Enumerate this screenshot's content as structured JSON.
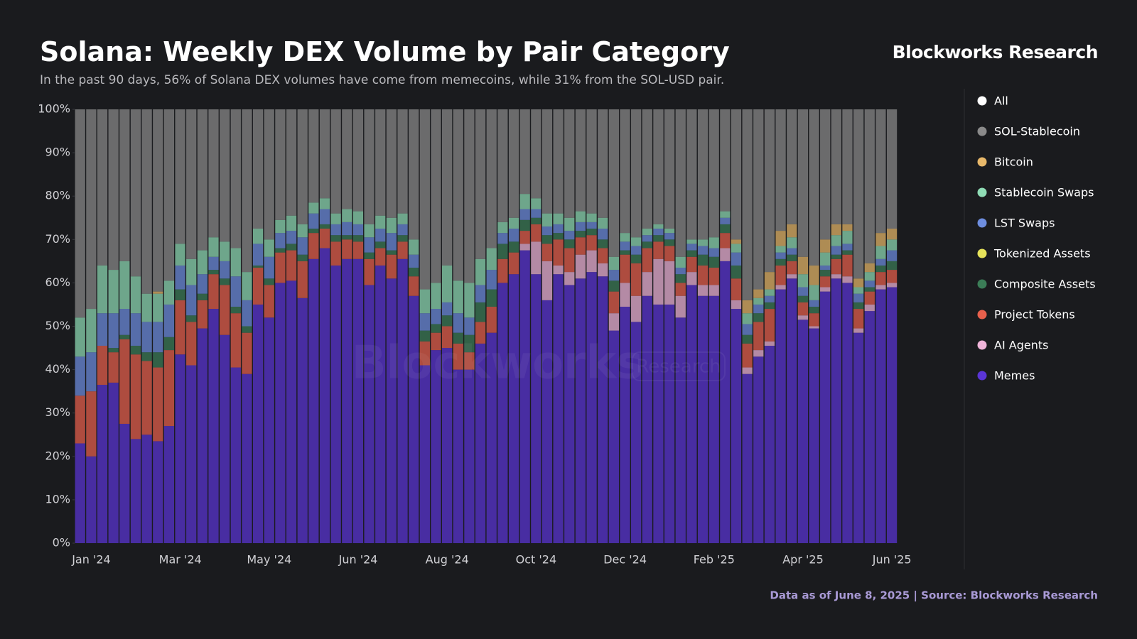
{
  "chart_data": {
    "type": "bar",
    "stacked": true,
    "title": "Solana: Weekly DEX Volume by Pair Category",
    "subtitle": "In the past 90 days, 56% of Solana DEX volumes have come from memecoins, while 31% from the SOL-USD pair.",
    "brand": "Blockworks Research",
    "footer": "Data as of June 8, 2025 | Source: Blockworks Research",
    "watermark": {
      "name": "Blockworks",
      "tag": "Research"
    },
    "legend_toggle": "All",
    "legend_position": "right",
    "grid": false,
    "ylim": [
      0,
      100
    ],
    "yticks": [
      {
        "value": 0,
        "label": "0%"
      },
      {
        "value": 10,
        "label": "10%"
      },
      {
        "value": 20,
        "label": "20%"
      },
      {
        "value": 30,
        "label": "30%"
      },
      {
        "value": 40,
        "label": "40%"
      },
      {
        "value": 50,
        "label": "50%"
      },
      {
        "value": 60,
        "label": "60%"
      },
      {
        "value": 70,
        "label": "70%"
      },
      {
        "value": 80,
        "label": "80%"
      },
      {
        "value": 90,
        "label": "90%"
      },
      {
        "value": 100,
        "label": "100%"
      }
    ],
    "categories": [
      null,
      "Jan '24",
      null,
      null,
      null,
      null,
      null,
      null,
      null,
      "Mar '24",
      null,
      null,
      null,
      null,
      null,
      null,
      null,
      "May '24",
      null,
      null,
      null,
      null,
      null,
      null,
      null,
      "Jun '24",
      null,
      null,
      null,
      null,
      null,
      null,
      null,
      "Aug '24",
      null,
      null,
      null,
      null,
      null,
      null,
      null,
      "Oct '24",
      null,
      null,
      null,
      null,
      null,
      null,
      null,
      "Dec '24",
      null,
      null,
      null,
      null,
      null,
      null,
      null,
      "Feb '25",
      null,
      null,
      null,
      null,
      null,
      null,
      null,
      "Apr '25",
      null,
      null,
      null,
      null,
      null,
      null,
      null,
      "Jun '25"
    ],
    "series": [
      {
        "name": "Memes",
        "color": "#5a35d6",
        "values": [
          23,
          20,
          36.5,
          37,
          27.5,
          24,
          25,
          23.5,
          27,
          43.5,
          41,
          49.5,
          54,
          48,
          40.5,
          39,
          55,
          52,
          60,
          60.5,
          56.5,
          65.5,
          68,
          64,
          65.5,
          65.5,
          59.5,
          64,
          61,
          65.5,
          57,
          41,
          44.5,
          45,
          40,
          40,
          46,
          48.5,
          60,
          62,
          67.5,
          62,
          56,
          62,
          59.5,
          61,
          62.5,
          61.5,
          49,
          54.5,
          51,
          57,
          55,
          55,
          52,
          59.5,
          57,
          57,
          65,
          54,
          39,
          43,
          45.5,
          58.5,
          61,
          51.5,
          49.5,
          58,
          61,
          60,
          48.5,
          53.5,
          58.5,
          59
        ]
      },
      {
        "name": "AI Agents",
        "color": "#f0b5da",
        "values": [
          0,
          0,
          0,
          0,
          0,
          0,
          0,
          0,
          0,
          0,
          0,
          0,
          0,
          0,
          0,
          0,
          0,
          0,
          0,
          0,
          0,
          0,
          0,
          0,
          0,
          0,
          0,
          0,
          0,
          0,
          0,
          0,
          0,
          0,
          0,
          0,
          0,
          0,
          0,
          0,
          1.5,
          7.5,
          9,
          2,
          3,
          5.5,
          5,
          3,
          4,
          5.5,
          6,
          5.5,
          10.5,
          10,
          5,
          3,
          2.5,
          2.5,
          3,
          2,
          1.5,
          1.5,
          1,
          1,
          1,
          1,
          0.5,
          1,
          1,
          1.5,
          1,
          1.5,
          1,
          1
        ]
      },
      {
        "name": "Project Tokens",
        "color": "#e8604c",
        "values": [
          11,
          15,
          9,
          7,
          19.5,
          19.5,
          17,
          17,
          17.5,
          12.5,
          10,
          6.5,
          8,
          11.5,
          12.5,
          9.5,
          8.5,
          7.5,
          7,
          7,
          8.5,
          6,
          4.5,
          5.5,
          4.5,
          4,
          6,
          4,
          5.5,
          4,
          4.5,
          5.5,
          4,
          5,
          6,
          4,
          5,
          6,
          5.5,
          5,
          3,
          4,
          4,
          6,
          5.5,
          4,
          3.5,
          3.5,
          5,
          6.5,
          7.5,
          5.5,
          4,
          3.5,
          3,
          3.5,
          4.5,
          4,
          3.5,
          5,
          5.5,
          6.5,
          7.5,
          4.5,
          3,
          3,
          3,
          2.5,
          3.5,
          5,
          4.5,
          3,
          3,
          3
        ]
      },
      {
        "name": "Composite Assets",
        "color": "#3b7d57",
        "values": [
          0,
          0,
          0,
          1,
          1,
          2,
          2,
          3.5,
          3,
          2.5,
          1.5,
          1.5,
          1,
          1.5,
          1.5,
          1.5,
          0.5,
          1.5,
          1,
          1.5,
          1.5,
          1,
          1,
          1.5,
          1,
          1.5,
          1.5,
          1.5,
          1,
          1.5,
          2,
          2.5,
          2,
          2.5,
          2.5,
          4,
          4.5,
          4,
          3.5,
          2.5,
          2.5,
          1.5,
          2,
          1.5,
          2,
          1.5,
          1.5,
          2,
          2.5,
          1,
          2,
          1.5,
          1.5,
          1.5,
          2,
          1.5,
          2.5,
          2.5,
          2,
          3,
          2,
          2,
          1.5,
          1.5,
          1.5,
          1.5,
          1.5,
          1.5,
          1,
          1,
          1.5,
          1,
          1.5,
          2
        ]
      },
      {
        "name": "Tokenized Assets",
        "color": "#e6e35a",
        "values": [
          0,
          0,
          0,
          0,
          0,
          0,
          0,
          0,
          0,
          0,
          0,
          0,
          0,
          0,
          0,
          0,
          0,
          0,
          0,
          0,
          0,
          0,
          0,
          0,
          0,
          0,
          0,
          0,
          0,
          0,
          0,
          0,
          0,
          0,
          0,
          0,
          0,
          0,
          0,
          0,
          0,
          0,
          0,
          0,
          0,
          0,
          0,
          0,
          0,
          0,
          0,
          0,
          0,
          0,
          0,
          0,
          0,
          0,
          0,
          0,
          0,
          0,
          0,
          0,
          0,
          0,
          0,
          0,
          0,
          0,
          0,
          0,
          0,
          0
        ]
      },
      {
        "name": "LST Swaps",
        "color": "#6e8ee0",
        "values": [
          9,
          9,
          7.5,
          8,
          6,
          7.5,
          7,
          7,
          7.5,
          5.5,
          7,
          4.5,
          3,
          4,
          7,
          6,
          5,
          5,
          3.5,
          3,
          4,
          3.5,
          3.5,
          2.5,
          3,
          2.5,
          3.5,
          3,
          4,
          2.5,
          3,
          4,
          3.5,
          3,
          4.5,
          4,
          4,
          4.5,
          2.5,
          3,
          2.5,
          2,
          2,
          2,
          2,
          2,
          1.5,
          2.5,
          2.5,
          2,
          2,
          1.5,
          1.5,
          1.5,
          1.5,
          1.5,
          2,
          2,
          1.5,
          3,
          2.5,
          2,
          1.5,
          1.5,
          1.5,
          2,
          1.5,
          1,
          2,
          1.5,
          2,
          1.5,
          1.5,
          2.5
        ]
      },
      {
        "name": "Stablecoin Swaps",
        "color": "#8fdcb5",
        "values": [
          9,
          10,
          11,
          10,
          11,
          8.5,
          6.5,
          6.5,
          5.5,
          5,
          6,
          5.5,
          4.5,
          4.5,
          6.5,
          6.5,
          3.5,
          4,
          3,
          3.5,
          3,
          2.5,
          2.5,
          2.5,
          3,
          3,
          3,
          3,
          3.5,
          2.5,
          3.5,
          5.5,
          6,
          8.5,
          7.5,
          8,
          6,
          5,
          2.5,
          2.5,
          3.5,
          2.5,
          3,
          2.5,
          3,
          2.5,
          2,
          2.5,
          3,
          2,
          2,
          1.5,
          1,
          1,
          2.5,
          1,
          1.5,
          2.5,
          1.5,
          2,
          2.5,
          1.5,
          1.5,
          1.5,
          2.5,
          3,
          3.5,
          3,
          2.5,
          3,
          1.5,
          2,
          3,
          2.5
        ]
      },
      {
        "name": "Bitcoin",
        "color": "#e8b86a",
        "values": [
          0,
          0,
          0,
          0,
          0,
          0,
          0,
          0.5,
          0,
          0,
          0,
          0,
          0,
          0,
          0,
          0,
          0,
          0,
          0,
          0,
          0,
          0,
          0,
          0,
          0,
          0,
          0,
          0,
          0,
          0,
          0,
          0,
          0,
          0,
          0,
          0,
          0,
          0,
          0,
          0,
          0,
          0,
          0,
          0,
          0,
          0,
          0,
          0,
          0,
          0,
          0,
          0,
          0,
          0,
          0,
          0,
          0,
          0,
          0,
          1,
          3,
          2,
          4,
          3.5,
          3,
          4,
          4.5,
          3,
          2.5,
          1.5,
          2,
          2,
          3,
          2.5
        ]
      },
      {
        "name": "SOL-Stablecoin",
        "color": "#8a8a8a",
        "values": [
          48,
          46,
          36,
          37,
          35,
          38.5,
          42.5,
          42,
          39.5,
          31,
          34.5,
          32.5,
          29.5,
          30.5,
          32,
          37.5,
          27.5,
          30,
          25.5,
          24.5,
          26.5,
          21.5,
          20.5,
          24,
          23,
          23.5,
          26.5,
          24.5,
          25,
          24,
          30,
          41.5,
          40,
          36,
          39.5,
          40,
          34.5,
          32,
          26,
          25,
          19.5,
          20.5,
          24,
          24,
          25,
          23.5,
          24,
          25,
          34,
          28.5,
          29.5,
          27.5,
          26.5,
          27.5,
          34,
          30,
          30,
          29.5,
          23.5,
          30,
          44,
          41.5,
          37.5,
          28,
          26.5,
          34,
          36,
          30,
          26.5,
          26.5,
          39,
          35.5,
          28.5,
          27.5
        ]
      }
    ]
  }
}
